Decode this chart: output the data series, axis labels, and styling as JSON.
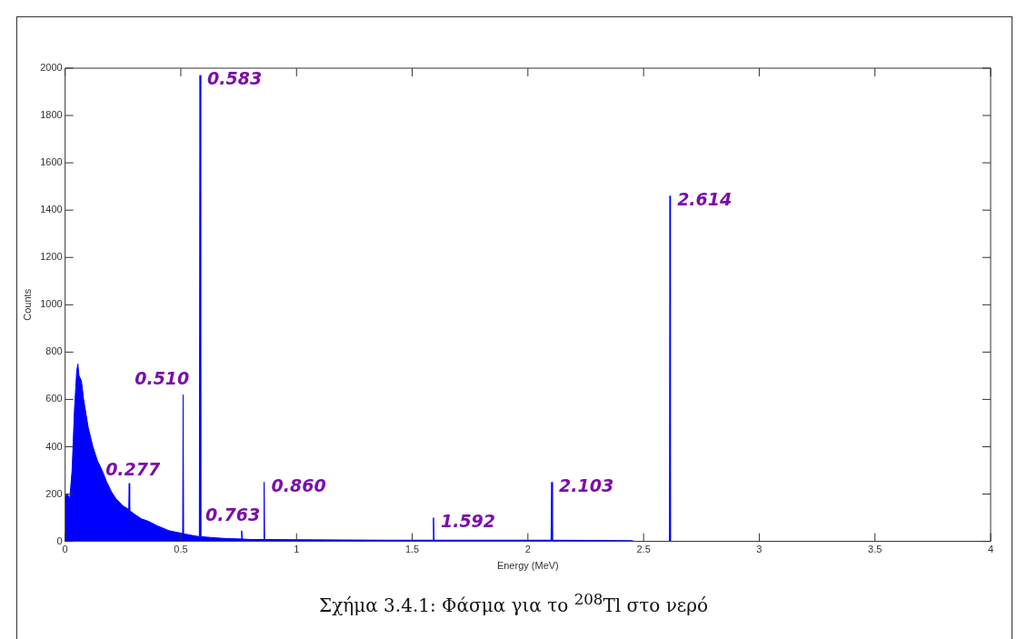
{
  "chart_data": {
    "type": "area",
    "xlabel": "Energy (MeV)",
    "ylabel": "Counts",
    "xlim": [
      0,
      4
    ],
    "xticks": [
      0,
      0.5,
      1,
      1.5,
      2,
      2.5,
      3,
      3.5,
      4
    ],
    "ylim": [
      0,
      2000
    ],
    "yticks": [
      0,
      200,
      400,
      600,
      800,
      1000,
      1200,
      1400,
      1600,
      1800,
      2000
    ],
    "grid": false,
    "legend": false,
    "series": [
      {
        "color": "#0000ff",
        "x": [
          0,
          0.005,
          0.01,
          0.02,
          0.03,
          0.04,
          0.05,
          0.055,
          0.06,
          0.07,
          0.08,
          0.09,
          0.1,
          0.12,
          0.14,
          0.16,
          0.18,
          0.2,
          0.22,
          0.25,
          0.275,
          0.277,
          0.279,
          0.3,
          0.33,
          0.36,
          0.4,
          0.45,
          0.5,
          0.508,
          0.51,
          0.512,
          0.55,
          0.58,
          0.583,
          0.586,
          0.65,
          0.7,
          0.76,
          0.763,
          0.766,
          0.8,
          0.858,
          0.86,
          0.862,
          1,
          1.2,
          1.4,
          1.59,
          1.592,
          1.594,
          1.8,
          2.1,
          2.103,
          2.106,
          2.3,
          2.45,
          2.46,
          2.612,
          2.614,
          2.616,
          4
        ],
        "values": [
          200,
          190,
          200,
          180,
          300,
          550,
          720,
          750,
          700,
          680,
          600,
          540,
          480,
          400,
          340,
          300,
          250,
          210,
          180,
          150,
          135,
          245,
          130,
          115,
          95,
          85,
          65,
          45,
          35,
          33,
          620,
          32,
          25,
          20,
          1970,
          20,
          15,
          12,
          10,
          45,
          10,
          8,
          8,
          250,
          8,
          7,
          6,
          5,
          5,
          100,
          5,
          5,
          5,
          250,
          5,
          4,
          3,
          0,
          0,
          1460,
          0,
          0
        ]
      }
    ],
    "annotations": [
      {
        "text": "0.277",
        "x": 0.277,
        "y": 245
      },
      {
        "text": "0.510",
        "x": 0.51,
        "y": 620
      },
      {
        "text": "0.583",
        "x": 0.583,
        "y": 1970
      },
      {
        "text": "0.763",
        "x": 0.763,
        "y": 45
      },
      {
        "text": "0.860",
        "x": 0.86,
        "y": 250
      },
      {
        "text": "1.592",
        "x": 1.592,
        "y": 100
      },
      {
        "text": "2.103",
        "x": 2.103,
        "y": 250
      },
      {
        "text": "2.614",
        "x": 2.614,
        "y": 1460
      },
      "Σχήμα 3.4.1: Φάσμα για το $^{208}$Tl στο νερό"
    ]
  }
}
